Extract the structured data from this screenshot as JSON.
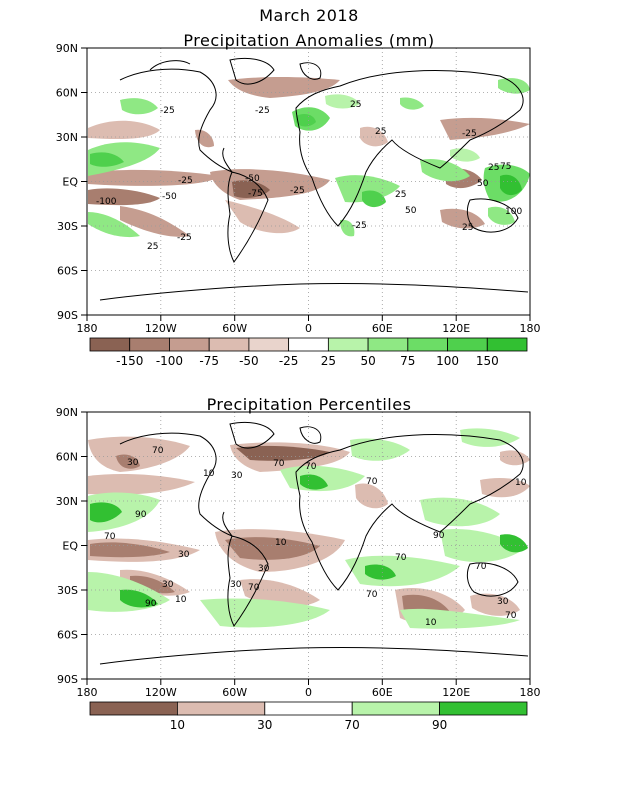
{
  "header": {
    "title": "March 2018",
    "subtitle": "Precipitation Anomalies (mm)"
  },
  "panel2": {
    "title": "Precipitation Percentiles"
  },
  "axes": {
    "lat_labels": [
      "90N",
      "60N",
      "30N",
      "EQ",
      "30S",
      "60S",
      "90S"
    ],
    "lon_labels": [
      "180",
      "120W",
      "60W",
      "0",
      "60E",
      "120E",
      "180"
    ]
  },
  "anomaly_colorbar": {
    "labels": [
      "-150",
      "-100",
      "-75",
      "-50",
      "-25",
      "25",
      "50",
      "75",
      "100",
      "150"
    ],
    "colors": [
      "#8a6253",
      "#a87e6f",
      "#c59d90",
      "#dcbcb1",
      "#e9d4cc",
      "#ffffff",
      "#b8f3aa",
      "#8fe884",
      "#6cdd66",
      "#4fd04d",
      "#32c032"
    ]
  },
  "percentile_colorbar": {
    "labels": [
      "10",
      "30",
      "70",
      "90"
    ],
    "colors": [
      "#8a6253",
      "#dcbcb1",
      "#ffffff",
      "#b8f3aa",
      "#32c032"
    ]
  },
  "contour_labels_anom": [
    "-25",
    "25",
    "-25",
    "-25",
    "-25",
    "-50",
    "-75",
    "-100",
    "-50",
    "-25",
    "25",
    "-25",
    "25",
    "50",
    "-25",
    "25",
    "100",
    "75",
    "50",
    "25",
    "25"
  ],
  "contour_labels_pct": [
    "70",
    "30",
    "70",
    "30",
    "10",
    "70",
    "70",
    "90",
    "70",
    "30",
    "10",
    "30",
    "70",
    "30",
    "90",
    "10",
    "70",
    "70",
    "70",
    "10",
    "30",
    "30",
    "70",
    "10",
    "90"
  ]
}
